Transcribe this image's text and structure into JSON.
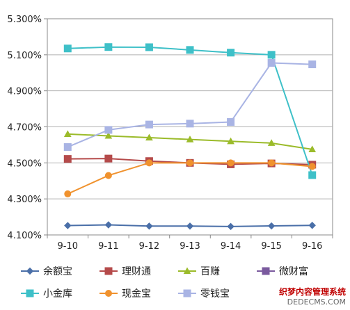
{
  "chart_data": {
    "type": "line",
    "title": "",
    "xlabel": "",
    "ylabel": "",
    "categories": [
      "9-10",
      "9-11",
      "9-12",
      "9-13",
      "9-14",
      "9-15",
      "9-16"
    ],
    "yticks": [
      "4.100%",
      "4.300%",
      "4.500%",
      "4.700%",
      "4.900%",
      "5.100%",
      "5.300%"
    ],
    "ylim": [
      4.1,
      5.3
    ],
    "grid": true,
    "legend_position": "bottom",
    "series": [
      {
        "name": "余额宝",
        "color": "#4a6fa8",
        "marker": "diamond",
        "values": [
          4.152,
          4.156,
          4.149,
          4.149,
          4.147,
          4.15,
          4.153
        ]
      },
      {
        "name": "理财通",
        "color": "#b54a4a",
        "marker": "square",
        "values": [
          4.522,
          4.524,
          4.51,
          4.5,
          4.492,
          4.497,
          4.49
        ]
      },
      {
        "name": "百赚",
        "color": "#9bbb2a",
        "marker": "triangle",
        "values": [
          4.66,
          4.65,
          4.64,
          4.63,
          4.62,
          4.61,
          4.575
        ]
      },
      {
        "name": "微财富",
        "color": "#7a5a9e",
        "marker": "square",
        "values": [
          null,
          null,
          null,
          null,
          null,
          null,
          null
        ]
      },
      {
        "name": "小金库",
        "color": "#3ec0c8",
        "marker": "square",
        "values": [
          5.135,
          5.143,
          5.142,
          5.127,
          5.112,
          5.1,
          4.432
        ]
      },
      {
        "name": "现金宝",
        "color": "#f0922e",
        "marker": "circle",
        "values": [
          4.328,
          4.43,
          4.5,
          4.5,
          4.5,
          4.5,
          4.48
        ]
      },
      {
        "name": "零钱宝",
        "color": "#a9b4e4",
        "marker": "square",
        "values": [
          4.588,
          4.683,
          4.713,
          4.718,
          4.727,
          5.055,
          5.047
        ]
      }
    ]
  },
  "watermark": {
    "line1": "织梦内容管理系统",
    "line2": "DEDECMS.COM"
  }
}
